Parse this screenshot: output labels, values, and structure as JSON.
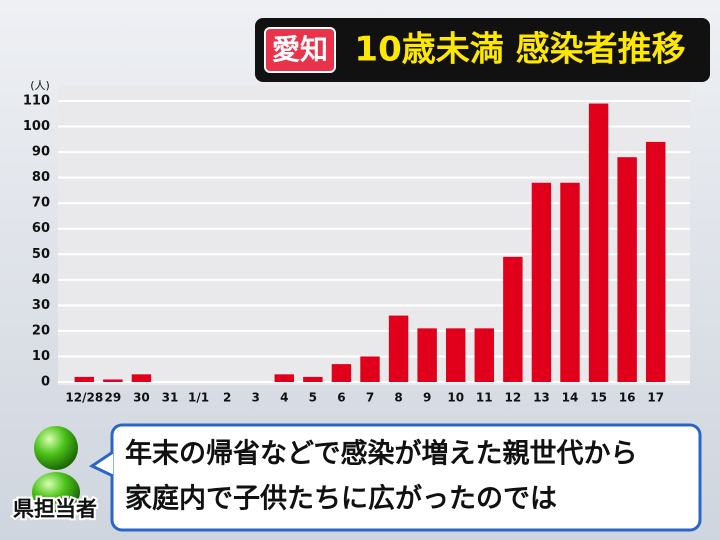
{
  "chart_data": {
    "type": "bar",
    "badge": "愛知",
    "title": "10歳未満 感染者推移",
    "y_unit": "(人)",
    "categories": [
      "12/28",
      "29",
      "30",
      "31",
      "1/1",
      "2",
      "3",
      "4",
      "5",
      "6",
      "7",
      "8",
      "9",
      "10",
      "11",
      "12",
      "13",
      "14",
      "15",
      "16",
      "17"
    ],
    "values": [
      2,
      1,
      3,
      0,
      0,
      0,
      0,
      3,
      2,
      7,
      10,
      26,
      21,
      21,
      21,
      49,
      78,
      78,
      109,
      88,
      94
    ],
    "color": "#e0001b",
    "ylim": [
      0,
      110
    ],
    "yticks": [
      0,
      10,
      20,
      30,
      40,
      50,
      60,
      70,
      80,
      90,
      100,
      110
    ],
    "grid": true
  },
  "caption": {
    "speaker": "県担当者",
    "quote_lines": [
      "年末の帰省などで感染が増えた親世代から",
      "家庭内で子供たちに広がったのでは"
    ]
  }
}
